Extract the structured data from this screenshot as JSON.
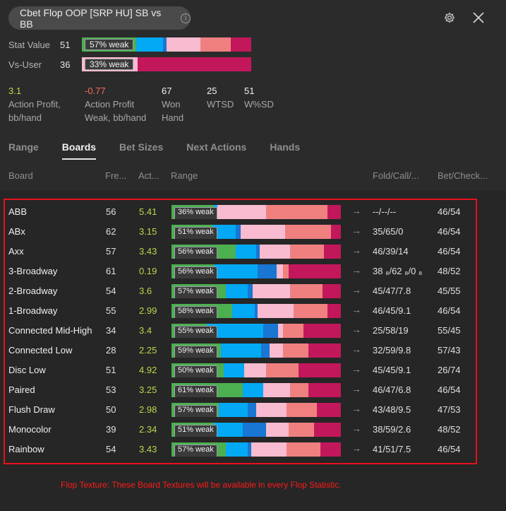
{
  "header": {
    "title": "Cbet Flop OOP [SRP HU] SB vs BB",
    "info_icon": "info-icon",
    "settings_icon": "gear-icon",
    "close_icon": "close-icon"
  },
  "stats": [
    {
      "label": "Stat Value",
      "value": "51",
      "badge": "57% weak",
      "segments": [
        {
          "color": "#4caf50",
          "fraction": 0.32
        },
        {
          "color": "#03a9f4",
          "fraction": 0.16
        },
        {
          "color": "#1976d2",
          "fraction": 0.02
        },
        {
          "color": "#f8bbd0",
          "fraction": 0.2
        },
        {
          "color": "#f08080",
          "fraction": 0.18
        },
        {
          "color": "#c2185b",
          "fraction": 0.12
        }
      ]
    },
    {
      "label": "Vs-User",
      "value": "36",
      "badge": "33% weak",
      "segments": [
        {
          "color": "#f8bbd0",
          "fraction": 0.33
        },
        {
          "color": "#c2185b",
          "fraction": 0.67
        }
      ]
    }
  ],
  "metrics": [
    {
      "value": "3.1",
      "label1": "Action Profit,",
      "label2": "bb/hand",
      "color": "#b7d94a"
    },
    {
      "value": "-0.77",
      "label1": "Action Profit",
      "label2": "Weak, bb/hand",
      "color": "#ff6b5a"
    },
    {
      "value": "67",
      "label1": "Won",
      "label2": "Hand",
      "color": "#f0f0f0"
    },
    {
      "value": "25",
      "label1": "WTSD",
      "label2": "",
      "color": "#f0f0f0"
    },
    {
      "value": "51",
      "label1": "W%SD",
      "label2": "",
      "color": "#f0f0f0"
    }
  ],
  "tabs": [
    "Range",
    "Boards",
    "Bet Sizes",
    "Next Actions",
    "Hands"
  ],
  "active_tab": "Boards",
  "columns": {
    "board": "Board",
    "freq": "Fre...",
    "act": "Act...",
    "range": "Range",
    "fcr": "Fold/Call/...",
    "bc": "Bet/Check..."
  },
  "arrow_glyph": "→",
  "rows": [
    {
      "board": "ABB",
      "freq": "56",
      "act": "5.41",
      "badge": "36% weak",
      "fcr": "--/--/--",
      "bc": "46/54",
      "segments": [
        {
          "color": "#4caf50",
          "fraction": 0.25
        },
        {
          "color": "#03a9f4",
          "fraction": 0.02
        },
        {
          "color": "#f8bbd0",
          "fraction": 0.29
        },
        {
          "color": "#f08080",
          "fraction": 0.36
        },
        {
          "color": "#c2185b",
          "fraction": 0.08
        }
      ]
    },
    {
      "board": "ABx",
      "freq": "62",
      "act": "3.15",
      "badge": "51% weak",
      "fcr": "35/65/0",
      "bc": "46/54",
      "segments": [
        {
          "color": "#4caf50",
          "fraction": 0.25
        },
        {
          "color": "#03a9f4",
          "fraction": 0.14
        },
        {
          "color": "#1976d2",
          "fraction": 0.03
        },
        {
          "color": "#f8bbd0",
          "fraction": 0.27
        },
        {
          "color": "#f08080",
          "fraction": 0.28
        },
        {
          "color": "#c2185b",
          "fraction": 0.06
        }
      ]
    },
    {
      "board": "Axx",
      "freq": "57",
      "act": "3.43",
      "badge": "56% weak",
      "fcr": "46/39/14",
      "bc": "46/54",
      "segments": [
        {
          "color": "#4caf50",
          "fraction": 0.38
        },
        {
          "color": "#03a9f4",
          "fraction": 0.12
        },
        {
          "color": "#1976d2",
          "fraction": 0.02
        },
        {
          "color": "#f8bbd0",
          "fraction": 0.18
        },
        {
          "color": "#f08080",
          "fraction": 0.2
        },
        {
          "color": "#c2185b",
          "fraction": 0.1
        }
      ]
    },
    {
      "board": "3-Broadway",
      "freq": "61",
      "act": "0.19",
      "badge": "56% weak",
      "fcr": "38 ₈/62 ₈/0 ₈",
      "bc": "48/52",
      "segments": [
        {
          "color": "#4caf50",
          "fraction": 0.25
        },
        {
          "color": "#03a9f4",
          "fraction": 0.26
        },
        {
          "color": "#1976d2",
          "fraction": 0.11
        },
        {
          "color": "#f8bbd0",
          "fraction": 0.04
        },
        {
          "color": "#f08080",
          "fraction": 0.03
        },
        {
          "color": "#c2185b",
          "fraction": 0.31
        }
      ]
    },
    {
      "board": "2-Broadway",
      "freq": "54",
      "act": "3.6",
      "badge": "57% weak",
      "fcr": "45/47/7.8",
      "bc": "45/55",
      "segments": [
        {
          "color": "#4caf50",
          "fraction": 0.32
        },
        {
          "color": "#03a9f4",
          "fraction": 0.13
        },
        {
          "color": "#1976d2",
          "fraction": 0.03
        },
        {
          "color": "#f8bbd0",
          "fraction": 0.22
        },
        {
          "color": "#f08080",
          "fraction": 0.19
        },
        {
          "color": "#c2185b",
          "fraction": 0.11
        }
      ]
    },
    {
      "board": "1-Broadway",
      "freq": "55",
      "act": "2.99",
      "badge": "58% weak",
      "fcr": "46/45/9.1",
      "bc": "46/54",
      "segments": [
        {
          "color": "#4caf50",
          "fraction": 0.36
        },
        {
          "color": "#03a9f4",
          "fraction": 0.13
        },
        {
          "color": "#1976d2",
          "fraction": 0.02
        },
        {
          "color": "#f8bbd0",
          "fraction": 0.21
        },
        {
          "color": "#f08080",
          "fraction": 0.2
        },
        {
          "color": "#c2185b",
          "fraction": 0.08
        }
      ]
    },
    {
      "board": "Connected Mid-High",
      "freq": "34",
      "act": "3.4",
      "badge": "55% weak",
      "fcr": "25/58/19",
      "bc": "55/45",
      "segments": [
        {
          "color": "#4caf50",
          "fraction": 0.21
        },
        {
          "color": "#03a9f4",
          "fraction": 0.33
        },
        {
          "color": "#1976d2",
          "fraction": 0.09
        },
        {
          "color": "#f8bbd0",
          "fraction": 0.03
        },
        {
          "color": "#f08080",
          "fraction": 0.12
        },
        {
          "color": "#c2185b",
          "fraction": 0.22
        }
      ]
    },
    {
      "board": "Connected Low",
      "freq": "28",
      "act": "2.25",
      "badge": "59% weak",
      "fcr": "32/59/9.8",
      "bc": "57/43",
      "segments": [
        {
          "color": "#4caf50",
          "fraction": 0.29
        },
        {
          "color": "#03a9f4",
          "fraction": 0.24
        },
        {
          "color": "#1976d2",
          "fraction": 0.05
        },
        {
          "color": "#f8bbd0",
          "fraction": 0.08
        },
        {
          "color": "#f08080",
          "fraction": 0.15
        },
        {
          "color": "#c2185b",
          "fraction": 0.19
        }
      ]
    },
    {
      "board": "Disc Low",
      "freq": "51",
      "act": "4.92",
      "badge": "50% weak",
      "fcr": "45/45/9.1",
      "bc": "26/74",
      "segments": [
        {
          "color": "#4caf50",
          "fraction": 0.31
        },
        {
          "color": "#03a9f4",
          "fraction": 0.12
        },
        {
          "color": "#f8bbd0",
          "fraction": 0.13
        },
        {
          "color": "#f08080",
          "fraction": 0.19
        },
        {
          "color": "#c2185b",
          "fraction": 0.25
        }
      ]
    },
    {
      "board": "Paired",
      "freq": "53",
      "act": "3.25",
      "badge": "61% weak",
      "fcr": "46/47/6.8",
      "bc": "46/54",
      "segments": [
        {
          "color": "#4caf50",
          "fraction": 0.42
        },
        {
          "color": "#03a9f4",
          "fraction": 0.12
        },
        {
          "color": "#f8bbd0",
          "fraction": 0.16
        },
        {
          "color": "#f08080",
          "fraction": 0.11
        },
        {
          "color": "#c2185b",
          "fraction": 0.19
        }
      ]
    },
    {
      "board": "Flush Draw",
      "freq": "50",
      "act": "2.98",
      "badge": "57% weak",
      "fcr": "43/48/9.5",
      "bc": "47/53",
      "segments": [
        {
          "color": "#4caf50",
          "fraction": 0.28
        },
        {
          "color": "#03a9f4",
          "fraction": 0.17
        },
        {
          "color": "#1976d2",
          "fraction": 0.05
        },
        {
          "color": "#f8bbd0",
          "fraction": 0.18
        },
        {
          "color": "#f08080",
          "fraction": 0.18
        },
        {
          "color": "#c2185b",
          "fraction": 0.14
        }
      ]
    },
    {
      "board": "Monocolor",
      "freq": "39",
      "act": "2.34",
      "badge": "51% weak",
      "fcr": "38/59/2.6",
      "bc": "48/52",
      "segments": [
        {
          "color": "#4caf50",
          "fraction": 0.25
        },
        {
          "color": "#03a9f4",
          "fraction": 0.17
        },
        {
          "color": "#1976d2",
          "fraction": 0.14
        },
        {
          "color": "#f8bbd0",
          "fraction": 0.13
        },
        {
          "color": "#f08080",
          "fraction": 0.15
        },
        {
          "color": "#c2185b",
          "fraction": 0.16
        }
      ]
    },
    {
      "board": "Rainbow",
      "freq": "54",
      "act": "3.43",
      "badge": "57% weak",
      "fcr": "41/51/7.5",
      "bc": "46/54",
      "segments": [
        {
          "color": "#4caf50",
          "fraction": 0.32
        },
        {
          "color": "#03a9f4",
          "fraction": 0.13
        },
        {
          "color": "#1976d2",
          "fraction": 0.02
        },
        {
          "color": "#f8bbd0",
          "fraction": 0.21
        },
        {
          "color": "#f08080",
          "fraction": 0.2
        },
        {
          "color": "#c2185b",
          "fraction": 0.12
        }
      ]
    }
  ],
  "footer_note": "Flop Texture: These Board Textures will be available in every Flop Statistic."
}
